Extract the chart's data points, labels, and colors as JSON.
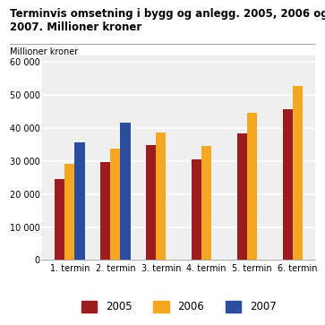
{
  "title_line1": "Terminvis omsetning i bygg og anlegg. 2005, 2006 og",
  "title_line2": "2007. Millioner kroner",
  "ylabel": "Millioner kroner",
  "categories": [
    "1. termin",
    "2. termin",
    "3. termin",
    "4. termin",
    "5. termin",
    "6. termin"
  ],
  "series": {
    "2005": [
      24500,
      29700,
      34800,
      30500,
      38200,
      45700
    ],
    "2006": [
      29000,
      33700,
      38700,
      34500,
      44700,
      52800
    ],
    "2007": [
      35500,
      41500,
      null,
      null,
      null,
      null
    ]
  },
  "colors": {
    "2005": "#9B1C1C",
    "2006": "#F5A623",
    "2007": "#2B4DA0"
  },
  "ylim": [
    0,
    62000
  ],
  "yticks": [
    0,
    10000,
    20000,
    30000,
    40000,
    50000,
    60000
  ],
  "ytick_labels": [
    "0",
    "10 000",
    "20 000",
    "30 000",
    "40 000",
    "50 000",
    "60 000"
  ],
  "background_color": "#ffffff",
  "plot_bg_color": "#efefef",
  "grid_color": "#ffffff",
  "bar_width": 0.22,
  "legend_labels": [
    "2005",
    "2006",
    "2007"
  ]
}
